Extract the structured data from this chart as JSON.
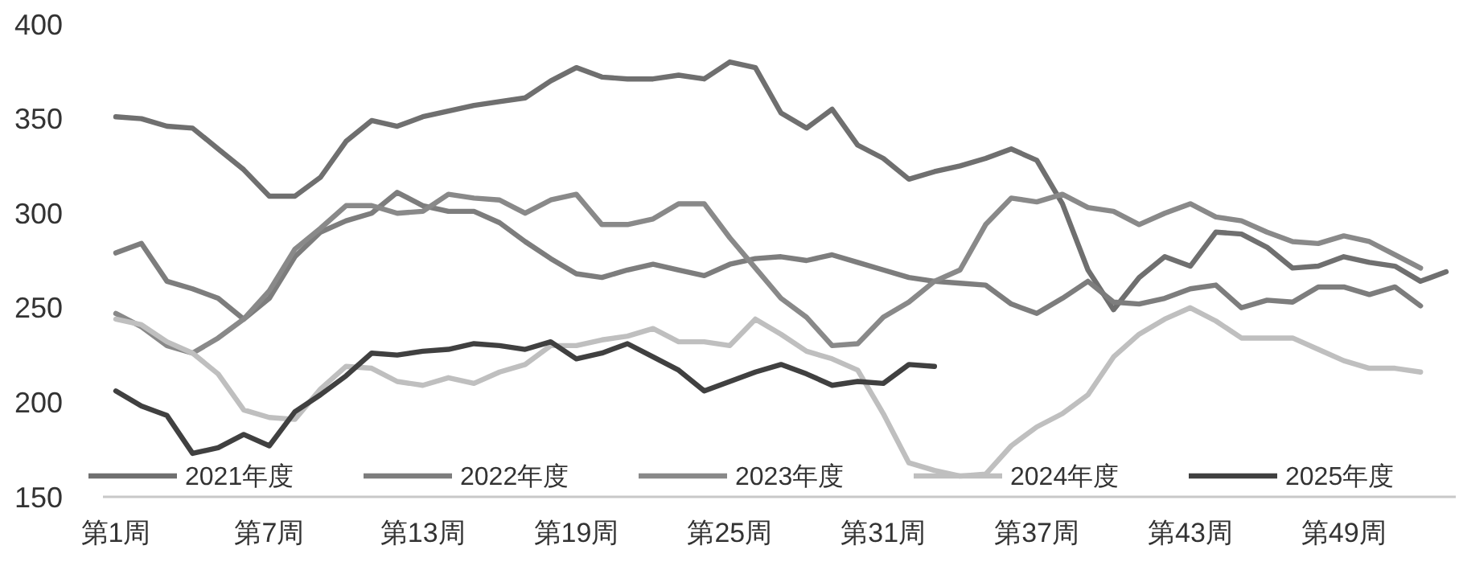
{
  "chart_data": {
    "type": "line",
    "categories": [
      "第1周",
      null,
      null,
      null,
      null,
      null,
      "第7周",
      null,
      null,
      null,
      null,
      null,
      "第13周",
      null,
      null,
      null,
      null,
      null,
      "第19周",
      null,
      null,
      null,
      null,
      null,
      "第25周",
      null,
      null,
      null,
      null,
      null,
      "第31周",
      null,
      null,
      null,
      null,
      null,
      "第37周",
      null,
      null,
      null,
      null,
      null,
      "第43周",
      null,
      null,
      null,
      null,
      null,
      "第49周",
      null,
      null,
      null,
      null
    ],
    "series": [
      {
        "name": "2021年度",
        "color": "#6f6f6f",
        "values": [
          351,
          350,
          346,
          345,
          334,
          323,
          309,
          309,
          319,
          338,
          349,
          346,
          351,
          354,
          357,
          359,
          361,
          370,
          377,
          372,
          371,
          371,
          373,
          371,
          380,
          377,
          353,
          345,
          355,
          336,
          329,
          318,
          322,
          325,
          329,
          334,
          328,
          305,
          270,
          249,
          266,
          277,
          272,
          290,
          289,
          282,
          271,
          272,
          277,
          274,
          272,
          264,
          269
        ]
      },
      {
        "name": "2022年度",
        "color": "#7d7d7d",
        "values": [
          279,
          284,
          264,
          260,
          255,
          244,
          255,
          277,
          290,
          296,
          300,
          311,
          304,
          301,
          301,
          295,
          285,
          276,
          268,
          266,
          270,
          273,
          270,
          267,
          273,
          276,
          277,
          275,
          278,
          274,
          270,
          266,
          264,
          263,
          262,
          252,
          247,
          255,
          264,
          253,
          252,
          255,
          260,
          262,
          250,
          254,
          253,
          261,
          261,
          257,
          261,
          251,
          null
        ]
      },
      {
        "name": "2023年度",
        "color": "#898989",
        "values": [
          247,
          240,
          230,
          226,
          234,
          244,
          259,
          281,
          292,
          304,
          304,
          300,
          301,
          310,
          308,
          307,
          300,
          307,
          310,
          294,
          294,
          297,
          305,
          305,
          287,
          271,
          255,
          245,
          230,
          231,
          245,
          253,
          264,
          270,
          294,
          308,
          306,
          310,
          303,
          301,
          294,
          300,
          305,
          298,
          296,
          290,
          285,
          284,
          288,
          285,
          278,
          271,
          null
        ]
      },
      {
        "name": "2024年度",
        "color": "#bfbfbf",
        "values": [
          244,
          241,
          232,
          226,
          215,
          196,
          192,
          191,
          207,
          219,
          218,
          211,
          209,
          213,
          210,
          216,
          220,
          230,
          230,
          233,
          235,
          239,
          232,
          232,
          230,
          244,
          236,
          227,
          223,
          217,
          194,
          168,
          164,
          161,
          162,
          177,
          187,
          194,
          204,
          224,
          236,
          244,
          250,
          243,
          234,
          234,
          234,
          228,
          222,
          218,
          218,
          216,
          null
        ]
      },
      {
        "name": "2025年度",
        "color": "#404040",
        "values": [
          206,
          198,
          193,
          173,
          176,
          183,
          177,
          195,
          204,
          214,
          226,
          225,
          227,
          228,
          231,
          230,
          228,
          232,
          223,
          226,
          231,
          224,
          217,
          206,
          211,
          216,
          220,
          215,
          209,
          211,
          210,
          220,
          219,
          null,
          null,
          null,
          null,
          null,
          null,
          null,
          null,
          null,
          null,
          null,
          null,
          null,
          null,
          null,
          null,
          null,
          null,
          null,
          null
        ]
      }
    ],
    "ylim": [
      150,
      400
    ],
    "yticks": [
      150,
      200,
      250,
      300,
      350,
      400
    ],
    "legend": "bottom",
    "grid": false
  }
}
